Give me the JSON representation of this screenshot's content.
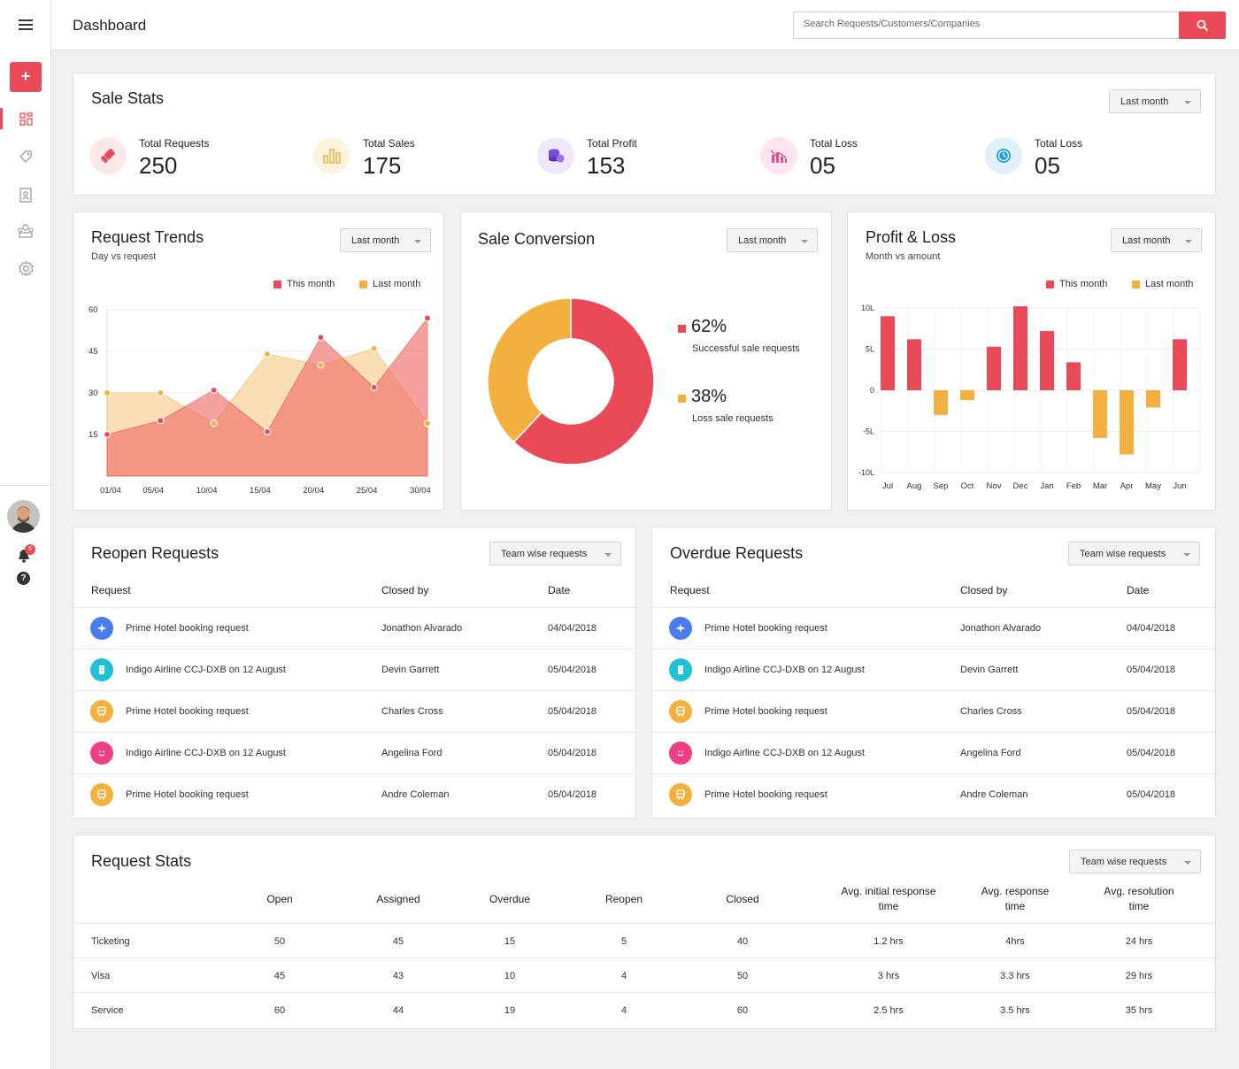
{
  "header": {
    "title": "Dashboard",
    "search_placeholder": "Search Requests/Customers/Companies"
  },
  "sidebar": {
    "add_label": "+",
    "notification_count": "5",
    "help_label": "?"
  },
  "sale_stats": {
    "title": "Sale Stats",
    "filter": "Last month",
    "items": [
      {
        "label": "Total Requests",
        "value": "250",
        "icon": "ticket-icon",
        "color": "#ea4a57"
      },
      {
        "label": "Total Sales",
        "value": "175",
        "icon": "bar-chart-icon",
        "color": "#f4b03e"
      },
      {
        "label": "Total Profit",
        "value": "153",
        "icon": "coins-icon",
        "color": "#7b4bd6"
      },
      {
        "label": "Total Loss",
        "value": "05",
        "icon": "loss-chart-icon",
        "color": "#e84793"
      },
      {
        "label": "Total Loss",
        "value": "05",
        "icon": "clock-icon",
        "color": "#1a9ee8"
      }
    ]
  },
  "request_trends": {
    "title": "Request Trends",
    "subtitle": "Day vs request",
    "filter": "Last month",
    "legend": [
      "This month",
      "Last month"
    ]
  },
  "sale_conversion": {
    "title": "Sale Conversion",
    "filter": "Last month",
    "success_pct": "62%",
    "success_label": "Successful sale requests",
    "loss_pct": "38%",
    "loss_label": "Loss sale requests"
  },
  "profit_loss": {
    "title": "Profit & Loss",
    "subtitle": "Month vs amount",
    "filter": "Last month",
    "legend": [
      "This month",
      "Last month"
    ]
  },
  "chart_data": [
    {
      "type": "area",
      "categories": [
        "01/04",
        "05/04",
        "10/04",
        "15/04",
        "20/04",
        "25/04",
        "30/04"
      ],
      "x": [
        0,
        4,
        9,
        14,
        19,
        24,
        29
      ],
      "series": [
        {
          "name": "This month",
          "color": "#ea4a57",
          "x": [
            0,
            5,
            10,
            15,
            20,
            25,
            30
          ],
          "values": [
            15,
            20,
            31,
            16,
            50,
            32,
            57
          ]
        },
        {
          "name": "Last month",
          "color": "#f4b03e",
          "x": [
            0,
            5,
            10,
            15,
            20,
            25,
            30
          ],
          "values": [
            30,
            30,
            19,
            44,
            40,
            46,
            19
          ]
        }
      ],
      "yticks": [
        15,
        30,
        45,
        60
      ],
      "ylim": [
        0,
        60
      ]
    },
    {
      "type": "pie",
      "labels": [
        "Successful sale requests",
        "Loss sale requests"
      ],
      "values": [
        62,
        38
      ],
      "colors": [
        "#ea4a57",
        "#f4b03e"
      ]
    },
    {
      "type": "bar",
      "categories": [
        "Jul",
        "Aug",
        "Sep",
        "Oct",
        "Nov",
        "Dec",
        "Jan",
        "Feb",
        "Mar",
        "Apr",
        "May",
        "Jun"
      ],
      "values": [
        9,
        6.2,
        -3,
        -1.2,
        5.3,
        10.2,
        7.2,
        3.4,
        -5.8,
        -7.8,
        -2.1,
        6.2
      ],
      "colors_by_sign": {
        "positive": "#ea4a57",
        "negative": "#f4b03e"
      },
      "yticks": [
        "10L",
        "5L",
        "0",
        "-5L",
        "-10L"
      ],
      "ylim": [
        -10,
        10
      ]
    }
  ],
  "reopen": {
    "title": "Reopen Requests",
    "filter": "Team wise requests",
    "headers": [
      "Request",
      "Closed by",
      "Date"
    ],
    "rows": [
      {
        "icon": "plane-icon",
        "color": "#4a7cf0",
        "request": "Prime Hotel booking request",
        "closed_by": "Jonathon Alvarado",
        "date": "04/04/2018"
      },
      {
        "icon": "building-icon",
        "color": "#1fc2d4",
        "request": "Indigo Airline CCJ-DXB on 12 August",
        "closed_by": "Devin Garrett",
        "date": "05/04/2018"
      },
      {
        "icon": "bus-icon",
        "color": "#f4b03e",
        "request": "Prime Hotel booking request",
        "closed_by": "Charles Cross",
        "date": "05/04/2018"
      },
      {
        "icon": "smile-icon",
        "color": "#ee3f84",
        "request": "Indigo Airline CCJ-DXB on 12 August",
        "closed_by": "Angelina Ford",
        "date": "05/04/2018"
      },
      {
        "icon": "bus-icon",
        "color": "#f4b03e",
        "request": "Prime Hotel booking request",
        "closed_by": "Andre Coleman",
        "date": "05/04/2018"
      }
    ]
  },
  "overdue": {
    "title": "Overdue Requests",
    "filter": "Team wise requests",
    "headers": [
      "Request",
      "Closed by",
      "Date"
    ],
    "rows": [
      {
        "icon": "plane-icon",
        "color": "#4a7cf0",
        "request": "Prime Hotel booking request",
        "closed_by": "Jonathon Alvarado",
        "date": "04/04/2018"
      },
      {
        "icon": "building-icon",
        "color": "#1fc2d4",
        "request": "Indigo Airline CCJ-DXB on 12 August",
        "closed_by": "Devin Garrett",
        "date": "05/04/2018"
      },
      {
        "icon": "bus-icon",
        "color": "#f4b03e",
        "request": "Prime Hotel booking request",
        "closed_by": "Charles Cross",
        "date": "05/04/2018"
      },
      {
        "icon": "smile-icon",
        "color": "#ee3f84",
        "request": "Indigo Airline CCJ-DXB on 12 August",
        "closed_by": "Angelina Ford",
        "date": "05/04/2018"
      },
      {
        "icon": "bus-icon",
        "color": "#f4b03e",
        "request": "Prime Hotel booking request",
        "closed_by": "Andre Coleman",
        "date": "05/04/2018"
      }
    ]
  },
  "request_stats": {
    "title": "Request Stats",
    "filter": "Team wise requests",
    "headers": [
      "Open",
      "Assigned",
      "Overdue",
      "Reopen",
      "Closed",
      "Avg. initial response time",
      "Avg. response time",
      "Avg. resolution time"
    ],
    "rows": [
      {
        "name": "Ticketing",
        "values": [
          "50",
          "45",
          "15",
          "5",
          "40",
          "1.2 hrs",
          "4hrs",
          "24 hrs"
        ]
      },
      {
        "name": "Visa",
        "values": [
          "45",
          "43",
          "10",
          "4",
          "50",
          "3 hrs",
          "3.3 hrs",
          "29 hrs"
        ]
      },
      {
        "name": "Service",
        "values": [
          "60",
          "44",
          "19",
          "4",
          "60",
          "2.5 hrs",
          "3.5 hrs",
          "35 hrs"
        ]
      }
    ]
  }
}
